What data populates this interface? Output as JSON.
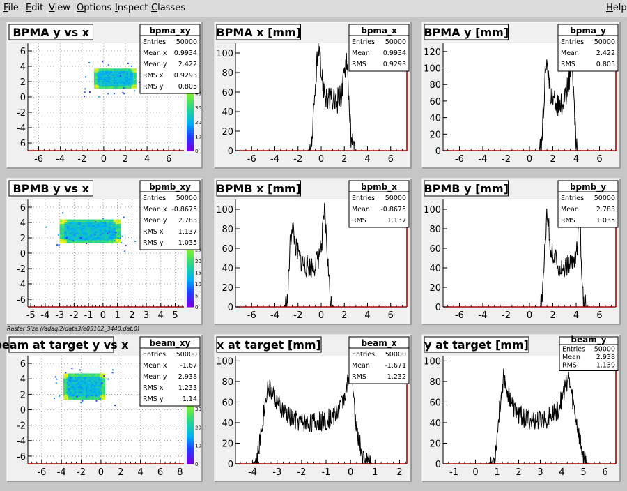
{
  "menubar": {
    "items": [
      {
        "label": "File",
        "ul": "F",
        "rest": "ile"
      },
      {
        "label": "Edit",
        "ul": "E",
        "rest": "dit"
      },
      {
        "label": "View",
        "ul": "V",
        "rest": "iew"
      },
      {
        "label": "Options",
        "ul": "O",
        "rest": "ptions"
      },
      {
        "label": "Inspect",
        "ul": "I",
        "rest": "nspect"
      },
      {
        "label": "Classes",
        "ul": "C",
        "rest": "lasses"
      }
    ],
    "help": {
      "label": "Help",
      "ul": "H",
      "rest": "elp"
    }
  },
  "caption": "Raster Size (/adaql2/data3/e05102_3440.dat.0)",
  "colors": {
    "background": "#c6c6c6",
    "hist_line": "#000000",
    "axis_red": "#b00000"
  },
  "chart_data": [
    {
      "id": "bpma_xy",
      "type": "heatmap",
      "title": "BPMA y vs x",
      "stats_name": "bpma_xy",
      "stats": [
        [
          "Entries",
          "50000"
        ],
        [
          "Mean x",
          "0.9934"
        ],
        [
          "Mean y",
          "2.422"
        ],
        [
          "RMS x",
          "0.9293"
        ],
        [
          "RMS y",
          "0.805"
        ]
      ],
      "xlim": [
        -7,
        7.4
      ],
      "ylim": [
        -7,
        7
      ],
      "xticks": [
        -6,
        -4,
        -2,
        0,
        2,
        4,
        6
      ],
      "yticks": [
        -6,
        -4,
        -2,
        0,
        2,
        4,
        6
      ],
      "grid": true,
      "rect": {
        "x0": -0.9,
        "x1": 3.0,
        "y0": 1.1,
        "y1": 3.7
      },
      "zticks": [
        0,
        10,
        20,
        30,
        40
      ],
      "zmax": 48
    },
    {
      "id": "bpma_x",
      "type": "line",
      "title": "BPMA x [mm]",
      "stats_name": "bpma_x",
      "stats": [
        [
          "Entries",
          "50000"
        ],
        [
          "Mean",
          "0.9934"
        ],
        [
          "RMS",
          "0.9293"
        ]
      ],
      "xlim": [
        -7.4,
        7.4
      ],
      "ylim": [
        0,
        110
      ],
      "xticks": [
        -6,
        -4,
        -2,
        0,
        2,
        4,
        6
      ],
      "yticks": [
        0,
        20,
        40,
        60,
        80,
        100
      ],
      "x": [
        -7.4,
        -1.2,
        -0.9,
        -0.6,
        -0.4,
        -0.2,
        0,
        0.3,
        0.6,
        0.9,
        1.2,
        1.5,
        1.8,
        2.0,
        2.2,
        2.4,
        2.6,
        3.0,
        7.4
      ],
      "y": [
        0,
        0,
        2,
        40,
        88,
        100,
        80,
        60,
        52,
        50,
        50,
        52,
        60,
        80,
        100,
        55,
        5,
        0,
        0
      ],
      "noise": 14
    },
    {
      "id": "bpma_y",
      "type": "line",
      "title": "BPMA y [mm]",
      "stats_name": "bpma_y",
      "stats": [
        [
          "Entries",
          "50000"
        ],
        [
          "Mean",
          "2.422"
        ],
        [
          "RMS",
          "0.805"
        ]
      ],
      "xlim": [
        -7.4,
        7.4
      ],
      "ylim": [
        0,
        130
      ],
      "xticks": [
        -6,
        -4,
        -2,
        0,
        2,
        4,
        6
      ],
      "yticks": [
        0,
        20,
        40,
        60,
        80,
        100,
        120
      ],
      "x": [
        -7.4,
        0.8,
        1.0,
        1.2,
        1.4,
        1.6,
        1.9,
        2.2,
        2.5,
        2.8,
        3.1,
        3.4,
        3.6,
        3.8,
        4.0,
        4.2,
        7.4
      ],
      "y": [
        0,
        0,
        3,
        50,
        110,
        85,
        65,
        58,
        55,
        58,
        65,
        85,
        110,
        60,
        5,
        0,
        0
      ],
      "noise": 14
    },
    {
      "id": "bpmb_xy",
      "type": "heatmap",
      "title": "BPMB y vs x",
      "stats_name": "bpmb_xy",
      "stats": [
        [
          "Entries",
          "50000"
        ],
        [
          "Mean x",
          "-0.8675"
        ],
        [
          "Mean y",
          "2.783"
        ],
        [
          "RMS x",
          "1.137"
        ],
        [
          "RMS y",
          "1.035"
        ]
      ],
      "xlim": [
        -5.2,
        5.6
      ],
      "ylim": [
        -7,
        7
      ],
      "xticks": [
        -5,
        -4,
        -3,
        -2,
        -1,
        0,
        1,
        2,
        3,
        4,
        5
      ],
      "yticks": [
        -6,
        -4,
        -2,
        0,
        2,
        4,
        6
      ],
      "grid": true,
      "rect": {
        "x0": -3.0,
        "x1": 1.2,
        "y0": 1.3,
        "y1": 4.4
      },
      "zticks": [
        0,
        5,
        10,
        15,
        20,
        25
      ],
      "zmax": 30
    },
    {
      "id": "bpmb_x",
      "type": "line",
      "title": "BPMB x [mm]",
      "stats_name": "bpmb_x",
      "stats": [
        [
          "Entries",
          "50000"
        ],
        [
          "Mean",
          "-0.8675"
        ],
        [
          "RMS",
          "1.137"
        ]
      ],
      "xlim": [
        -7.4,
        7.4
      ],
      "ylim": [
        0,
        110
      ],
      "xticks": [
        -6,
        -4,
        -2,
        0,
        2,
        4,
        6
      ],
      "yticks": [
        0,
        20,
        40,
        60,
        80,
        100
      ],
      "x": [
        -7.4,
        -3.2,
        -2.9,
        -2.7,
        -2.5,
        -2.2,
        -1.8,
        -1.4,
        -1.0,
        -0.6,
        -0.3,
        0,
        0.3,
        0.5,
        0.8,
        1.1,
        7.4
      ],
      "y": [
        0,
        0,
        5,
        60,
        85,
        60,
        48,
        42,
        40,
        42,
        48,
        60,
        100,
        60,
        5,
        0,
        0
      ],
      "noise": 12
    },
    {
      "id": "bpmb_y",
      "type": "line",
      "title": "BPMB y [mm]",
      "stats_name": "bpmb_y",
      "stats": [
        [
          "Entries",
          "50000"
        ],
        [
          "Mean",
          "2.783"
        ],
        [
          "RMS",
          "1.035"
        ]
      ],
      "xlim": [
        -7.4,
        7.4
      ],
      "ylim": [
        0,
        110
      ],
      "xticks": [
        -6,
        -4,
        -2,
        0,
        2,
        4,
        6
      ],
      "yticks": [
        0,
        20,
        40,
        60,
        80,
        100
      ],
      "x": [
        -7.4,
        0.9,
        1.1,
        1.3,
        1.5,
        1.8,
        2.2,
        2.6,
        3.0,
        3.4,
        3.8,
        4.1,
        4.3,
        4.6,
        4.9,
        7.4
      ],
      "y": [
        0,
        0,
        4,
        60,
        100,
        60,
        48,
        42,
        40,
        42,
        48,
        60,
        95,
        5,
        0,
        0
      ],
      "noise": 12
    },
    {
      "id": "beam_xy",
      "type": "heatmap",
      "title": "beam at target y vs x",
      "stats_name": "beam_xy",
      "stats": [
        [
          "Entries",
          "50000"
        ],
        [
          "Mean x",
          "-1.67"
        ],
        [
          "Mean y",
          "2.938"
        ],
        [
          "RMS x",
          "1.233"
        ],
        [
          "RMS y",
          "1.14"
        ]
      ],
      "xlim": [
        -7.4,
        8.4
      ],
      "ylim": [
        -7,
        7
      ],
      "xticks": [
        -6,
        -4,
        -2,
        0,
        2,
        4,
        6,
        8
      ],
      "yticks": [
        -6,
        -4,
        -2,
        0,
        2,
        4,
        6
      ],
      "grid": true,
      "rect": {
        "x0": -3.8,
        "x1": 0.4,
        "y0": 1.3,
        "y1": 4.7
      },
      "zticks": [
        0,
        10,
        20,
        30
      ],
      "zmax": 38
    },
    {
      "id": "beam_x",
      "type": "line",
      "title": "x at target [mm]",
      "stats_name": "beam_x",
      "stats": [
        [
          "Entries",
          "50000"
        ],
        [
          "Mean",
          "-1.671"
        ],
        [
          "RMS",
          "1.232"
        ]
      ],
      "xlim": [
        -4.7,
        2.3
      ],
      "ylim": [
        0,
        105
      ],
      "xticks": [
        -4,
        -3,
        -2,
        -1,
        0,
        1,
        2
      ],
      "yticks": [
        0,
        20,
        40,
        60,
        80,
        100
      ],
      "x": [
        -4.7,
        -4.0,
        -3.8,
        -3.6,
        -3.4,
        -3.2,
        -2.9,
        -2.6,
        -2.2,
        -1.8,
        -1.4,
        -1.0,
        -0.6,
        -0.3,
        -0.1,
        0.05,
        0.2,
        0.5,
        0.9,
        2.3
      ],
      "y": [
        0,
        0,
        5,
        40,
        75,
        70,
        55,
        47,
        42,
        40,
        40,
        42,
        48,
        62,
        80,
        90,
        40,
        5,
        0,
        0
      ],
      "noise": 10
    },
    {
      "id": "beam_y",
      "type": "line",
      "title": "y at target [mm]",
      "stats_name": "beam_y",
      "stats": [
        [
          "Entries",
          "50000"
        ],
        [
          "Mean",
          "2.938"
        ],
        [
          "RMS",
          "1.139"
        ]
      ],
      "stats_small": true,
      "xlim": [
        -1.5,
        6.5
      ],
      "ylim": [
        0,
        105
      ],
      "xticks": [
        -1,
        0,
        1,
        2,
        3,
        4,
        5,
        6
      ],
      "yticks": [
        0,
        20,
        40,
        60,
        80,
        100
      ],
      "x": [
        -1.5,
        0.6,
        0.9,
        1.1,
        1.3,
        1.5,
        1.8,
        2.2,
        2.6,
        3.0,
        3.4,
        3.8,
        4.1,
        4.3,
        4.6,
        5.0,
        5.2,
        6.5
      ],
      "y": [
        0,
        0,
        5,
        50,
        85,
        70,
        52,
        45,
        42,
        42,
        45,
        52,
        70,
        85,
        50,
        5,
        0,
        0
      ],
      "noise": 10
    }
  ]
}
